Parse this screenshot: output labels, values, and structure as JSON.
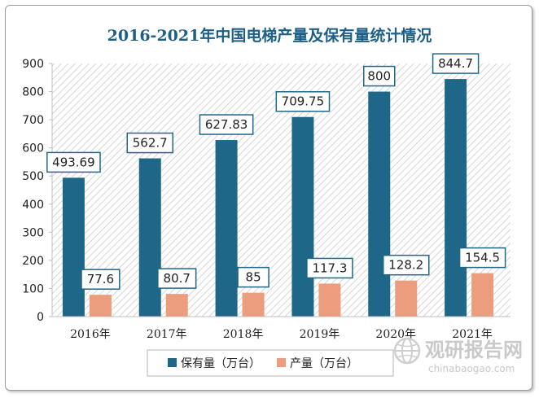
{
  "chart_data": {
    "type": "bar",
    "title": "2016-2021年中国电梯产量及保有量统计情况",
    "categories": [
      "2016年",
      "2017年",
      "2018年",
      "2019年",
      "2020年",
      "2021年"
    ],
    "series": [
      {
        "name": "保有量（万台）",
        "color": "#1f6788",
        "values": [
          493.69,
          562.7,
          627.83,
          709.75,
          800,
          844.7
        ]
      },
      {
        "name": "产量（万台）",
        "color": "#eb9d7e",
        "values": [
          77.6,
          80.7,
          85,
          117.3,
          128.2,
          154.5
        ]
      }
    ],
    "data_labels": [
      [
        "493.69",
        "562.7",
        "627.83",
        "709.75",
        "800",
        "844.7"
      ],
      [
        "77.6",
        "80.7",
        "85",
        "117.3",
        "128.2",
        "154.5"
      ]
    ],
    "ylim": [
      0,
      900
    ],
    "yticks": [
      "0",
      "100",
      "200",
      "300",
      "400",
      "500",
      "600",
      "700",
      "800",
      "900"
    ],
    "xlabel": "",
    "ylabel": "",
    "legend_position": "bottom",
    "grid": false,
    "plot_background": "diagonal-hatch"
  },
  "watermark": {
    "brand_cn": "观研报告网",
    "brand_en": "chinabaogao.com",
    "icon": "globe-icon"
  }
}
